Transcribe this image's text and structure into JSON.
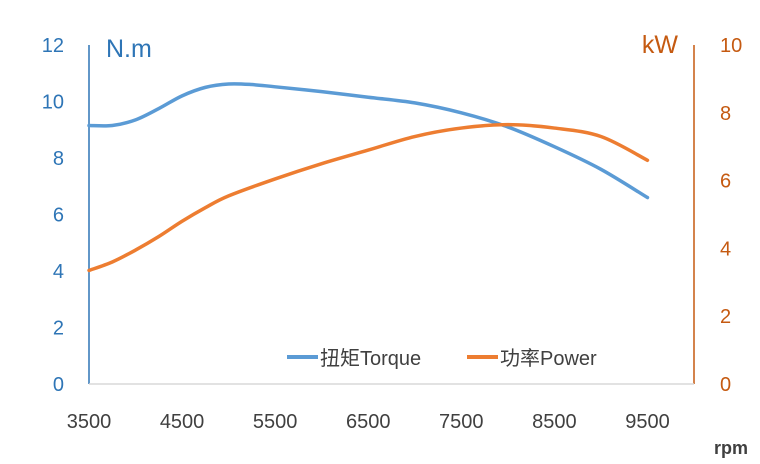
{
  "chart_data": {
    "type": "line",
    "xlabel": "rpm",
    "x_ticks": [
      3500,
      4500,
      5500,
      6500,
      7500,
      8500,
      9500
    ],
    "xlim": [
      3500,
      10000
    ],
    "y_left": {
      "unit": "N.m",
      "ticks": [
        0,
        2,
        4,
        6,
        8,
        10,
        12
      ],
      "ylim": [
        0,
        12
      ],
      "color": "#2E75B6"
    },
    "y_right": {
      "unit": "kW",
      "ticks": [
        0,
        2,
        4,
        6,
        8,
        10
      ],
      "ylim": [
        0,
        10
      ],
      "color": "#C55A11"
    },
    "series": [
      {
        "name": "扭矩Torque",
        "axis": "left",
        "color": "#5B9BD5",
        "x": [
          3500,
          3750,
          4000,
          4250,
          4500,
          4750,
          5000,
          5250,
          5500,
          6000,
          6500,
          7000,
          7500,
          8000,
          8500,
          9000,
          9500
        ],
        "values": [
          9.15,
          9.15,
          9.35,
          9.75,
          10.2,
          10.5,
          10.62,
          10.6,
          10.52,
          10.35,
          10.15,
          9.95,
          9.6,
          9.1,
          8.4,
          7.6,
          6.6
        ]
      },
      {
        "name": "功率Power",
        "axis": "right",
        "color": "#ED7D31",
        "x": [
          3500,
          3750,
          4000,
          4250,
          4500,
          4750,
          5000,
          5500,
          6000,
          6500,
          7000,
          7500,
          8000,
          8500,
          9000,
          9500
        ],
        "values": [
          3.35,
          3.6,
          3.95,
          4.35,
          4.8,
          5.2,
          5.55,
          6.05,
          6.5,
          6.9,
          7.3,
          7.55,
          7.65,
          7.55,
          7.3,
          6.6
        ]
      }
    ],
    "legend": "bottom-right",
    "grid": false
  }
}
